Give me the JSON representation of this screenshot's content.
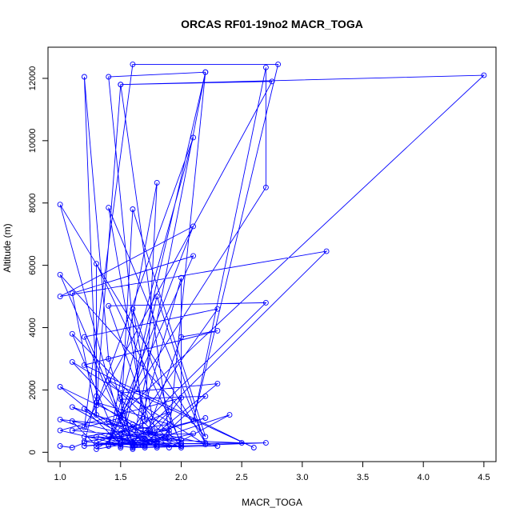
{
  "chart_data": {
    "type": "scatter",
    "title": "ORCAS RF01-19no2 MACR_TOGA",
    "xlabel": "MACR_TOGA",
    "ylabel": "Altitude (m)",
    "xlim": [
      0.9,
      4.6
    ],
    "ylim": [
      -300,
      13000
    ],
    "xticks": [
      1.0,
      1.5,
      2.0,
      2.5,
      3.0,
      3.5,
      4.0,
      4.5
    ],
    "xtick_labels": [
      "1.0",
      "1.5",
      "2.0",
      "2.5",
      "3.0",
      "3.5",
      "4.0",
      "4.5"
    ],
    "yticks": [
      0,
      2000,
      4000,
      6000,
      8000,
      10000,
      12000
    ],
    "ytick_labels": [
      "0",
      "2000",
      "4000",
      "6000",
      "8000",
      "10000",
      "12000"
    ],
    "grid": false,
    "connected": true,
    "color": "#0000ff",
    "series": [
      {
        "points": [
          [
            1.0,
            200
          ],
          [
            1.1,
            150
          ],
          [
            1.2,
            300
          ],
          [
            1.3,
            1800
          ],
          [
            1.2,
            12050
          ],
          [
            1.4,
            3000
          ],
          [
            1.6,
            250
          ],
          [
            2.2,
            12200
          ],
          [
            1.5,
            400
          ],
          [
            1.7,
            200
          ],
          [
            1.4,
            12050
          ],
          [
            2.2,
            12200
          ],
          [
            1.9,
            600
          ],
          [
            1.5,
            11800
          ],
          [
            2.75,
            11900
          ],
          [
            1.2,
            800
          ],
          [
            1.6,
            12450
          ],
          [
            2.8,
            12450
          ],
          [
            2.1,
            1000
          ],
          [
            2.7,
            12350
          ],
          [
            2.7,
            8500
          ],
          [
            1.5,
            1200
          ],
          [
            4.5,
            12100
          ],
          [
            1.5,
            11800
          ],
          [
            1.3,
            1500
          ],
          [
            2.1,
            10100
          ],
          [
            1.4,
            200
          ],
          [
            1.8,
            8650
          ],
          [
            1.7,
            1000
          ],
          [
            1.4,
            7850
          ],
          [
            2.2,
            300
          ],
          [
            1.0,
            7950
          ],
          [
            1.5,
            900
          ],
          [
            1.6,
            7800
          ],
          [
            2.2,
            500
          ],
          [
            1.0,
            5700
          ],
          [
            1.6,
            300
          ],
          [
            3.2,
            6450
          ],
          [
            1.0,
            5000
          ],
          [
            2.1,
            7250
          ],
          [
            1.4,
            250
          ],
          [
            2.1,
            6300
          ],
          [
            1.1,
            5100
          ],
          [
            1.3,
            1200
          ],
          [
            1.3,
            6050
          ],
          [
            2.0,
            300
          ],
          [
            2.0,
            5600
          ],
          [
            1.6,
            100
          ],
          [
            1.2,
            3700
          ],
          [
            2.3,
            4600
          ],
          [
            1.5,
            200
          ],
          [
            2.7,
            4800
          ],
          [
            1.4,
            4700
          ],
          [
            1.8,
            300
          ],
          [
            1.6,
            4600
          ],
          [
            2.0,
            200
          ],
          [
            1.1,
            3800
          ],
          [
            1.5,
            150
          ],
          [
            1.8,
            5000
          ],
          [
            2.2,
            250
          ],
          [
            1.1,
            2900
          ],
          [
            1.7,
            400
          ],
          [
            2.0,
            3700
          ],
          [
            2.3,
            3900
          ],
          [
            1.2,
            2800
          ],
          [
            2.6,
            150
          ],
          [
            1.4,
            2300
          ],
          [
            1.9,
            400
          ],
          [
            1.0,
            2100
          ],
          [
            1.6,
            200
          ],
          [
            1.5,
            1900
          ],
          [
            2.3,
            2200
          ],
          [
            1.7,
            300
          ],
          [
            2.4,
            1200
          ],
          [
            1.9,
            150
          ],
          [
            1.5,
            1700
          ],
          [
            2.2,
            1800
          ],
          [
            1.8,
            350
          ],
          [
            1.3,
            1600
          ],
          [
            1.9,
            900
          ],
          [
            1.2,
            500
          ],
          [
            2.5,
            300
          ],
          [
            1.4,
            250
          ],
          [
            2.7,
            300
          ],
          [
            1.6,
            150
          ],
          [
            2.3,
            200
          ],
          [
            1.7,
            700
          ],
          [
            2.0,
            150
          ],
          [
            1.1,
            1000
          ],
          [
            1.3,
            200
          ],
          [
            2.2,
            1100
          ],
          [
            1.5,
            300
          ],
          [
            2.0,
            400
          ],
          [
            1.1,
            700
          ],
          [
            1.5,
            1100
          ],
          [
            1.7,
            250
          ],
          [
            1.3,
            300
          ],
          [
            1.9,
            1300
          ],
          [
            1.6,
            200
          ],
          [
            1.0,
            1050
          ],
          [
            1.9,
            700
          ],
          [
            1.2,
            350
          ],
          [
            1.6,
            150
          ],
          [
            2.1,
            600
          ],
          [
            1.4,
            500
          ],
          [
            1.8,
            200
          ],
          [
            1.5,
            700
          ],
          [
            1.9,
            500
          ],
          [
            1.3,
            100
          ],
          [
            1.6,
            900
          ],
          [
            1.8,
            150
          ],
          [
            1.2,
            1400
          ],
          [
            1.5,
            250
          ],
          [
            1.0,
            700
          ],
          [
            2.0,
            1750
          ],
          [
            1.7,
            150
          ],
          [
            1.3,
            500
          ],
          [
            2.0,
            250
          ],
          [
            1.1,
            1450
          ],
          [
            1.5,
            600
          ],
          [
            1.4,
            1000
          ],
          [
            1.8,
            300
          ],
          [
            1.7,
            400
          ],
          [
            1.2,
            200
          ],
          [
            1.6,
            300
          ],
          [
            2.0,
            200
          ],
          [
            1.5,
            250
          ]
        ]
      }
    ]
  }
}
